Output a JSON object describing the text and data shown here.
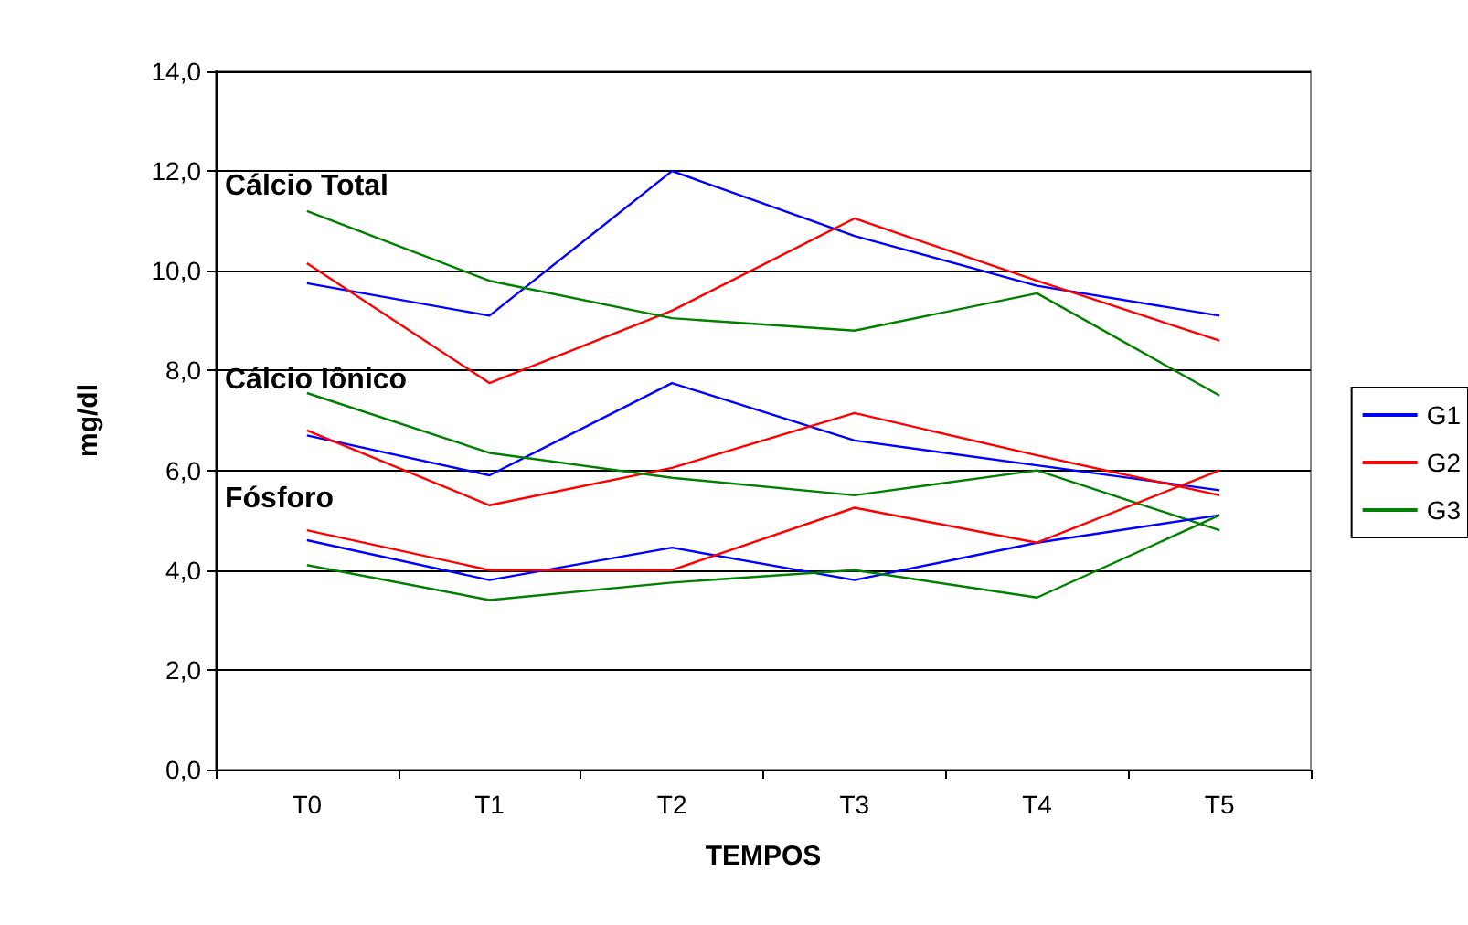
{
  "chart_data": {
    "type": "line",
    "xlabel": "TEMPOS",
    "ylabel": "mg/dl",
    "categories": [
      "T0",
      "T1",
      "T2",
      "T3",
      "T4",
      "T5"
    ],
    "series": [
      {
        "name": "G1",
        "color": "#0000ff",
        "values": [
          9.75,
          9.1,
          12.0,
          10.7,
          9.7,
          9.1
        ]
      },
      {
        "name": "G2",
        "color": "#ff0000",
        "values": [
          10.15,
          7.75,
          9.2,
          11.05,
          9.8,
          8.6
        ]
      },
      {
        "name": "G3",
        "color": "#008000",
        "values": [
          11.2,
          9.8,
          9.05,
          8.8,
          9.55,
          7.5
        ]
      },
      {
        "color": "#0000ff",
        "values": [
          6.7,
          5.9,
          7.75,
          6.6,
          6.1,
          5.6
        ]
      },
      {
        "color": "#ff0000",
        "values": [
          6.8,
          5.3,
          6.05,
          7.15,
          6.3,
          5.5
        ]
      },
      {
        "color": "#008000",
        "values": [
          7.55,
          6.35,
          5.85,
          5.5,
          6.0,
          4.8
        ]
      },
      {
        "color": "#0000ff",
        "values": [
          4.6,
          3.8,
          4.45,
          3.8,
          4.55,
          5.1
        ]
      },
      {
        "color": "#ff0000",
        "values": [
          4.8,
          4.0,
          4.0,
          5.25,
          4.55,
          6.0
        ]
      },
      {
        "color": "#008000",
        "values": [
          4.1,
          3.4,
          3.75,
          4.0,
          3.45,
          5.1
        ]
      }
    ],
    "annotations": [
      "Cálcio Total",
      "Cálcio Iônico",
      "Fósforo"
    ],
    "ylim": [
      0,
      14
    ],
    "yticks": [
      {
        "value": 0,
        "label": "0,0"
      },
      {
        "value": 2,
        "label": "2,0"
      },
      {
        "value": 4,
        "label": "4,0"
      },
      {
        "value": 6,
        "label": "6,0"
      },
      {
        "value": 8,
        "label": "8,0"
      },
      {
        "value": 10,
        "label": "10,0"
      },
      {
        "value": 12,
        "label": "12,0"
      },
      {
        "value": 14,
        "label": "14,0"
      }
    ],
    "grid": "y",
    "legend": "right",
    "marker": "none",
    "line_style": "solid"
  }
}
